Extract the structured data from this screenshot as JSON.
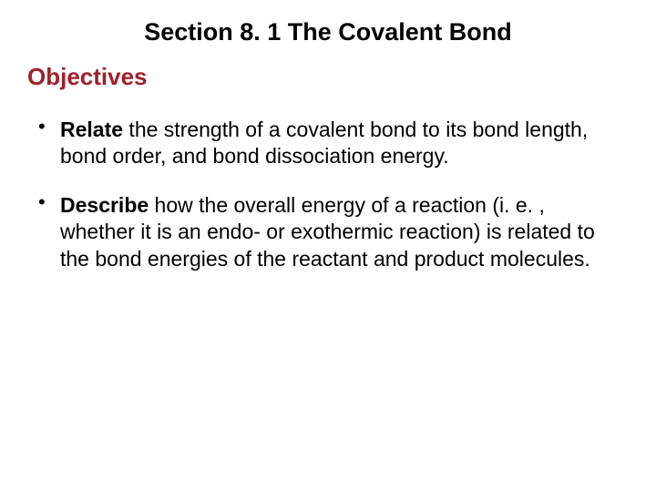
{
  "header": {
    "section_title": "Section 8. 1  The Covalent Bond",
    "title_fontsize": 27,
    "title_color": "#000000"
  },
  "objectives": {
    "heading": "Objectives",
    "heading_color": "#a02028",
    "heading_fontsize": 26
  },
  "bullets": {
    "items": [
      {
        "lead": "Relate",
        "rest": " the strength of a covalent bond to its bond length, bond order, and bond dissociation energy."
      },
      {
        "lead": "Describe",
        "rest": " how the overall energy of a reaction (i. e. , whether it is an endo- or exothermic reaction) is related to the bond energies of the reactant and product molecules."
      }
    ],
    "fontsize": 23,
    "text_color": "#000000"
  },
  "background_color": "#ffffff"
}
